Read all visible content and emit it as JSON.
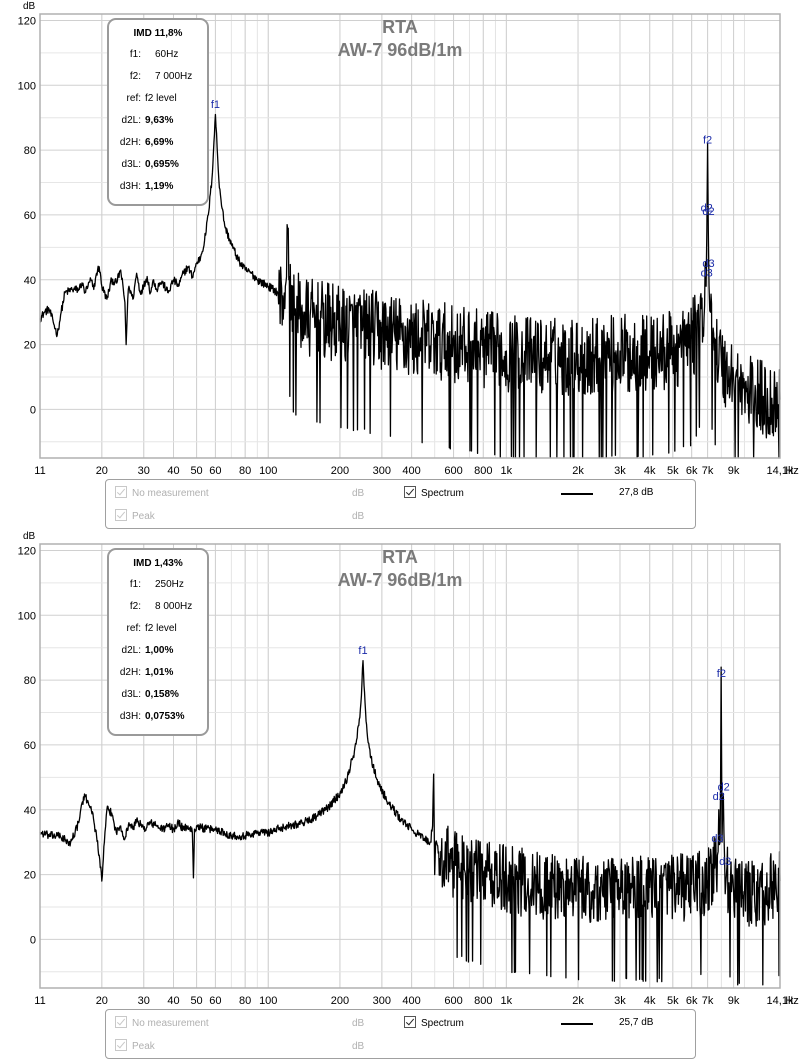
{
  "chart_data": [
    {
      "type": "line",
      "title": "RTA",
      "subtitle": "AW-7 96dB/1m",
      "ylabel": "dB",
      "xlabel": "",
      "x_scale": "log",
      "xlim": [
        11,
        14100
      ],
      "ylim": [
        -15,
        122
      ],
      "x_ticks": [
        11,
        20,
        30,
        40,
        50,
        60,
        80,
        100,
        200,
        300,
        400,
        600,
        800,
        1000,
        2000,
        3000,
        4000,
        5000,
        6000,
        7000,
        9000,
        14100
      ],
      "x_tick_labels": [
        "11",
        "20",
        "30",
        "40",
        "50",
        "60",
        "80",
        "100",
        "200",
        "300",
        "400",
        "600",
        "800",
        "1k",
        "2k",
        "3k",
        "4k",
        "5k",
        "6k",
        "7k",
        "9k",
        "14,1k"
      ],
      "x_unit": "Hz",
      "y_ticks": [
        0,
        20,
        40,
        60,
        80,
        100,
        120
      ],
      "grid": true,
      "imd": {
        "title": "IMD 11,8%",
        "rows": [
          {
            "label": "f1:",
            "value": "60Hz",
            "bold": false
          },
          {
            "label": "f2:",
            "value": "7 000Hz",
            "bold": false
          },
          {
            "label": "ref:",
            "value": "f2 level",
            "bold": false
          },
          {
            "label": "d2L:",
            "value": "9,63%",
            "bold": true
          },
          {
            "label": "d2H:",
            "value": "6,69%",
            "bold": true
          },
          {
            "label": "d3L:",
            "value": "0,695%",
            "bold": true
          },
          {
            "label": "d3H:",
            "value": "1,19%",
            "bold": true
          }
        ]
      },
      "markers": [
        {
          "label": "f1",
          "x": 60,
          "y": 93
        },
        {
          "label": "f2",
          "x": 7000,
          "y": 82
        },
        {
          "label": "d2",
          "x": 6940,
          "y": 61
        },
        {
          "label": "d2",
          "x": 7060,
          "y": 60
        },
        {
          "label": "d3",
          "x": 7060,
          "y": 44
        },
        {
          "label": "d3",
          "x": 6940,
          "y": 41
        }
      ],
      "series": [
        {
          "curve": [
            [
              11,
              28
            ],
            [
              11.5,
              30
            ],
            [
              12,
              31
            ],
            [
              12.5,
              27
            ],
            [
              13,
              23
            ],
            [
              13.5,
              30
            ],
            [
              14,
              36
            ],
            [
              15,
              37
            ],
            [
              16,
              37
            ],
            [
              16.5,
              39
            ],
            [
              17,
              36
            ],
            [
              17.5,
              38
            ],
            [
              18,
              40
            ],
            [
              18.5,
              37
            ],
            [
              19,
              42
            ],
            [
              19.5,
              44
            ],
            [
              20,
              38
            ],
            [
              21,
              34
            ],
            [
              22,
              40
            ],
            [
              23,
              39
            ],
            [
              24,
              43
            ],
            [
              25,
              33
            ],
            [
              25.3,
              20
            ],
            [
              25.7,
              34
            ],
            [
              26,
              38
            ],
            [
              27,
              34
            ],
            [
              28,
              42
            ],
            [
              29,
              36
            ],
            [
              30,
              38
            ],
            [
              31,
              41
            ],
            [
              32,
              36
            ],
            [
              33,
              40
            ],
            [
              34,
              37
            ],
            [
              35,
              39
            ],
            [
              36,
              39
            ],
            [
              38,
              36
            ],
            [
              40,
              40
            ],
            [
              42,
              38
            ],
            [
              44,
              42
            ],
            [
              46,
              44
            ],
            [
              48,
              41
            ],
            [
              50,
              45
            ],
            [
              52,
              47
            ],
            [
              54,
              52
            ],
            [
              56,
              60
            ],
            [
              58,
              71
            ],
            [
              60,
              91
            ],
            [
              62,
              71
            ],
            [
              64,
              62
            ],
            [
              66,
              56
            ],
            [
              70,
              51
            ],
            [
              75,
              46
            ],
            [
              80,
              43
            ],
            [
              85,
              42
            ],
            [
              90,
              40
            ],
            [
              100,
              38
            ],
            [
              110,
              36
            ],
            [
              115,
              35
            ],
            [
              118,
              38
            ],
            [
              120,
              57
            ],
            [
              122,
              40
            ],
            [
              125,
              32
            ],
            [
              130,
              31
            ],
            [
              140,
              30
            ],
            [
              150,
              29
            ],
            [
              170,
              28
            ],
            [
              200,
              27
            ],
            [
              250,
              26
            ],
            [
              300,
              25
            ],
            [
              400,
              23
            ],
            [
              500,
              22
            ],
            [
              700,
              20
            ],
            [
              1000,
              18
            ],
            [
              1500,
              17
            ],
            [
              2000,
              17
            ],
            [
              3000,
              18
            ],
            [
              4000,
              18
            ],
            [
              5000,
              19
            ],
            [
              6000,
              22
            ],
            [
              6500,
              27
            ],
            [
              6800,
              32
            ],
            [
              6900,
              38
            ],
            [
              6950,
              55
            ],
            [
              7000,
              82
            ],
            [
              7050,
              55
            ],
            [
              7100,
              38
            ],
            [
              7200,
              30
            ],
            [
              7500,
              22
            ],
            [
              8000,
              15
            ],
            [
              9000,
              10
            ],
            [
              10000,
              6
            ],
            [
              12000,
              4
            ],
            [
              14100,
              3
            ]
          ],
          "noise_from": 110,
          "noise_amplitude_db": 16
        }
      ],
      "legend": [
        {
          "label": "No measurement",
          "unit": "dB",
          "checked": true,
          "enabled": false
        },
        {
          "label": "Peak",
          "unit": "dB",
          "checked": true,
          "enabled": false
        },
        {
          "label": "Spectrum",
          "value": "27,8 dB",
          "checked": true,
          "enabled": true,
          "color": "#000000"
        }
      ]
    },
    {
      "type": "line",
      "title": "RTA",
      "subtitle": "AW-7 96dB/1m",
      "ylabel": "dB",
      "xlabel": "",
      "x_scale": "log",
      "xlim": [
        11,
        14100
      ],
      "ylim": [
        -15,
        122
      ],
      "x_ticks": [
        11,
        20,
        30,
        40,
        50,
        60,
        80,
        100,
        200,
        300,
        400,
        600,
        800,
        1000,
        2000,
        3000,
        4000,
        5000,
        6000,
        7000,
        9000,
        14100
      ],
      "x_tick_labels": [
        "11",
        "20",
        "30",
        "40",
        "50",
        "60",
        "80",
        "100",
        "200",
        "300",
        "400",
        "600",
        "800",
        "1k",
        "2k",
        "3k",
        "4k",
        "5k",
        "6k",
        "7k",
        "9k",
        "14,1k"
      ],
      "x_unit": "Hz",
      "y_ticks": [
        0,
        20,
        40,
        60,
        80,
        100,
        120
      ],
      "grid": true,
      "imd": {
        "title": "IMD 1,43%",
        "rows": [
          {
            "label": "f1:",
            "value": "250Hz",
            "bold": false
          },
          {
            "label": "f2:",
            "value": "8 000Hz",
            "bold": false
          },
          {
            "label": "ref:",
            "value": "f2 level",
            "bold": false
          },
          {
            "label": "d2L:",
            "value": "1,00%",
            "bold": true
          },
          {
            "label": "d2H:",
            "value": "1,01%",
            "bold": true
          },
          {
            "label": "d3L:",
            "value": "0,158%",
            "bold": true
          },
          {
            "label": "d3H:",
            "value": "0,0753%",
            "bold": true
          }
        ]
      },
      "markers": [
        {
          "label": "f1",
          "x": 250,
          "y": 88
        },
        {
          "label": "f2",
          "x": 8000,
          "y": 81
        },
        {
          "label": "d2",
          "x": 8180,
          "y": 46
        },
        {
          "label": "d2",
          "x": 7800,
          "y": 43
        },
        {
          "label": "d3",
          "x": 7700,
          "y": 30
        },
        {
          "label": "d3",
          "x": 8300,
          "y": 23
        }
      ],
      "series": [
        {
          "curve": [
            [
              11,
              33
            ],
            [
              12,
              32
            ],
            [
              13,
              32
            ],
            [
              14,
              31
            ],
            [
              14.5,
              29
            ],
            [
              15,
              31
            ],
            [
              16,
              36
            ],
            [
              16.5,
              42
            ],
            [
              17,
              44
            ],
            [
              18,
              41
            ],
            [
              19,
              32
            ],
            [
              19.5,
              26
            ],
            [
              20,
              18
            ],
            [
              20.5,
              30
            ],
            [
              21,
              40
            ],
            [
              22,
              39
            ],
            [
              23,
              33
            ],
            [
              24,
              35
            ],
            [
              25,
              31
            ],
            [
              26,
              36
            ],
            [
              27,
              34
            ],
            [
              28,
              37
            ],
            [
              30,
              34
            ],
            [
              32,
              36
            ],
            [
              34,
              35
            ],
            [
              36,
              34
            ],
            [
              38,
              35
            ],
            [
              40,
              34
            ],
            [
              42,
              36
            ],
            [
              44,
              34
            ],
            [
              46,
              35
            ],
            [
              48,
              33
            ],
            [
              48.5,
              19
            ],
            [
              49,
              34
            ],
            [
              50,
              35
            ],
            [
              55,
              34
            ],
            [
              60,
              34
            ],
            [
              65,
              33
            ],
            [
              70,
              32
            ],
            [
              80,
              32
            ],
            [
              90,
              33
            ],
            [
              100,
              33
            ],
            [
              120,
              35
            ],
            [
              140,
              36
            ],
            [
              160,
              38
            ],
            [
              180,
              41
            ],
            [
              200,
              45
            ],
            [
              215,
              50
            ],
            [
              230,
              58
            ],
            [
              240,
              66
            ],
            [
              245,
              73
            ],
            [
              250,
              86
            ],
            [
              255,
              73
            ],
            [
              260,
              64
            ],
            [
              270,
              56
            ],
            [
              290,
              48
            ],
            [
              320,
              42
            ],
            [
              360,
              37
            ],
            [
              400,
              34
            ],
            [
              450,
              31
            ],
            [
              480,
              30
            ],
            [
              490,
              35
            ],
            [
              495,
              51
            ],
            [
              500,
              20
            ],
            [
              505,
              30
            ],
            [
              520,
              27
            ],
            [
              600,
              24
            ],
            [
              700,
              22
            ],
            [
              800,
              21
            ],
            [
              1000,
              19
            ],
            [
              1500,
              17
            ],
            [
              2000,
              16
            ],
            [
              3000,
              16
            ],
            [
              4000,
              16
            ],
            [
              5000,
              16
            ],
            [
              6000,
              17
            ],
            [
              7000,
              18
            ],
            [
              7500,
              22
            ],
            [
              7700,
              26
            ],
            [
              7800,
              40
            ],
            [
              7900,
              30
            ],
            [
              7980,
              84
            ],
            [
              8050,
              30
            ],
            [
              8150,
              45
            ],
            [
              8250,
              25
            ],
            [
              8400,
              20
            ],
            [
              9000,
              15
            ],
            [
              10000,
              14
            ],
            [
              12000,
              15
            ],
            [
              14100,
              18
            ]
          ],
          "noise_from": 520,
          "noise_amplitude_db": 14
        }
      ],
      "legend": [
        {
          "label": "No measurement",
          "unit": "dB",
          "checked": true,
          "enabled": false
        },
        {
          "label": "Peak",
          "unit": "dB",
          "checked": true,
          "enabled": false
        },
        {
          "label": "Spectrum",
          "value": "25,7 dB",
          "checked": true,
          "enabled": true,
          "color": "#000000"
        }
      ]
    }
  ]
}
